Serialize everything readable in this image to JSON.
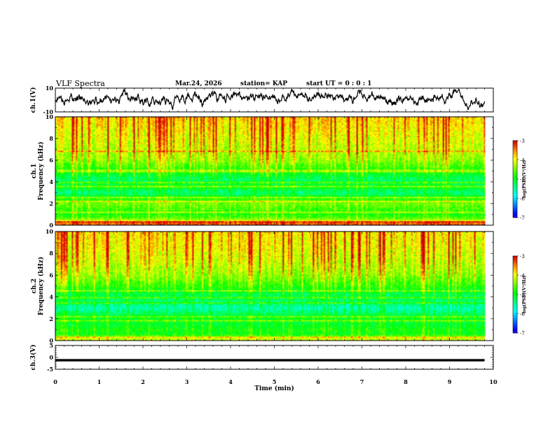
{
  "header": {
    "title": "VLF Spectra",
    "date": "Mar.24, 2026",
    "station": "station= KAP",
    "start_ut": "start UT =  0 : 0 : 1"
  },
  "chart_data": [
    {
      "type": "line",
      "name": "ch1-waveform",
      "ylabel": "ch.1(V)",
      "ylim": [
        -10,
        10
      ],
      "yticks": [
        10,
        -10
      ],
      "xlim": [
        0,
        10
      ],
      "data_end_min": 9.8,
      "series": [
        {
          "name": "ch.1 waveform",
          "description": "noisy voltage trace oscillating roughly between -6 and 8 V",
          "mean": 1,
          "amplitude": 6.5
        }
      ]
    },
    {
      "type": "heatmap",
      "name": "ch1-spectrogram",
      "ylabel": "ch.1\nFrequency (kHz)",
      "ylim": [
        0,
        10
      ],
      "yticks": [
        0,
        2,
        4,
        6,
        8,
        10
      ],
      "xlim": [
        0,
        10
      ],
      "data_end_min": 9.8,
      "colorbar": {
        "label": "log(PSD)(V²/Hz)",
        "range": [
          -7,
          -3
        ],
        "ticks": [
          -3,
          -4,
          -5,
          -6,
          -7
        ]
      },
      "spectral_levels": [
        {
          "f_khz": 0.2,
          "log_psd": -3.4
        },
        {
          "f_khz": 0.6,
          "log_psd": -4.6
        },
        {
          "f_khz": 1.0,
          "log_psd": -4.9
        },
        {
          "f_khz": 1.5,
          "log_psd": -4.7
        },
        {
          "f_khz": 2.0,
          "log_psd": -4.5
        },
        {
          "f_khz": 2.5,
          "log_psd": -4.9
        },
        {
          "f_khz": 3.0,
          "log_psd": -5.4
        },
        {
          "f_khz": 3.5,
          "log_psd": -5.0
        },
        {
          "f_khz": 4.2,
          "log_psd": -5.3
        },
        {
          "f_khz": 5.0,
          "log_psd": -4.9
        },
        {
          "f_khz": 6.0,
          "log_psd": -4.4
        },
        {
          "f_khz": 7.0,
          "log_psd": -4.2
        },
        {
          "f_khz": 8.5,
          "log_psd": -4.0
        },
        {
          "f_khz": 10.0,
          "log_psd": -3.8
        }
      ],
      "lines_khz": [
        0.3,
        1.2,
        2.2,
        2.6,
        3.6,
        3.9,
        5.0,
        6.8
      ]
    },
    {
      "type": "heatmap",
      "name": "ch2-spectrogram",
      "ylabel": "ch.2\nFrequency (kHz)",
      "ylim": [
        0,
        10
      ],
      "yticks": [
        0,
        2,
        4,
        6,
        8,
        10
      ],
      "xlim": [
        0,
        10
      ],
      "data_end_min": 9.8,
      "colorbar": {
        "label": "log(PSD)(V²/Hz)",
        "range": [
          -7,
          -3
        ],
        "ticks": [
          -3,
          -4,
          -5,
          -6,
          -7
        ]
      },
      "spectral_levels": [
        {
          "f_khz": 0.2,
          "log_psd": -4.2
        },
        {
          "f_khz": 0.6,
          "log_psd": -5.0
        },
        {
          "f_khz": 1.0,
          "log_psd": -4.9
        },
        {
          "f_khz": 1.5,
          "log_psd": -5.1
        },
        {
          "f_khz": 2.0,
          "log_psd": -5.0
        },
        {
          "f_khz": 2.5,
          "log_psd": -5.3
        },
        {
          "f_khz": 3.0,
          "log_psd": -5.6
        },
        {
          "f_khz": 3.5,
          "log_psd": -5.3
        },
        {
          "f_khz": 4.2,
          "log_psd": -5.2
        },
        {
          "f_khz": 5.0,
          "log_psd": -4.8
        },
        {
          "f_khz": 6.0,
          "log_psd": -4.4
        },
        {
          "f_khz": 7.0,
          "log_psd": -4.2
        },
        {
          "f_khz": 8.5,
          "log_psd": -4.0
        },
        {
          "f_khz": 10.0,
          "log_psd": -3.9
        }
      ],
      "lines_khz": [
        0.3,
        1.8,
        2.2,
        3.4,
        3.9,
        4.6
      ]
    },
    {
      "type": "line",
      "name": "ch3-signal",
      "ylabel": "ch.3(V)",
      "ylim": [
        -5,
        5
      ],
      "yticks": [
        5,
        0,
        -5
      ],
      "xlim": [
        0,
        10
      ],
      "data_end_min": 9.8,
      "series": [
        {
          "name": "ch.3",
          "description": "flat dense band near -1.2 V",
          "level": -1.2,
          "band_halfwidth": 0.5
        }
      ]
    }
  ],
  "x_axis": {
    "label": "Time (min)",
    "ticks": [
      0,
      1,
      2,
      3,
      4,
      5,
      6,
      7,
      8,
      9,
      10
    ]
  }
}
